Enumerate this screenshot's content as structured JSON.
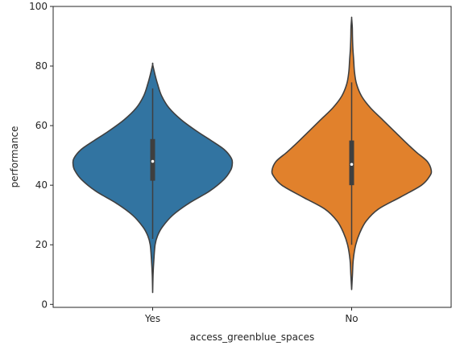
{
  "chart_data": {
    "type": "violin",
    "title": "",
    "xlabel": "access_greenblue_spaces",
    "ylabel": "performance",
    "ylim": [
      -1,
      100
    ],
    "yticks": [
      0,
      20,
      40,
      60,
      80,
      100
    ],
    "categories": [
      "Yes",
      "No"
    ],
    "grid": false,
    "legend": "none",
    "series": [
      {
        "category": "Yes",
        "color": "#3274a1",
        "min": 4,
        "max": 80.5,
        "whisker_low": 22,
        "whisker_high": 72.5,
        "q1": 41.5,
        "median": 48,
        "q3": 55.5,
        "density_half_width": [
          [
            4,
            0.0
          ],
          [
            10,
            0.5
          ],
          [
            15,
            1.5
          ],
          [
            20,
            3
          ],
          [
            23,
            6
          ],
          [
            26,
            12
          ],
          [
            30,
            25
          ],
          [
            34,
            45
          ],
          [
            38,
            70
          ],
          [
            42,
            88
          ],
          [
            45,
            96
          ],
          [
            47,
            98
          ],
          [
            49,
            97
          ],
          [
            52,
            88
          ],
          [
            55,
            72
          ],
          [
            58,
            55
          ],
          [
            62,
            35
          ],
          [
            66,
            20
          ],
          [
            70,
            11
          ],
          [
            74,
            6
          ],
          [
            77,
            3
          ],
          [
            80.5,
            0.0
          ]
        ]
      },
      {
        "category": "No",
        "color": "#e1812c",
        "min": 5,
        "max": 96,
        "whisker_low": 20,
        "whisker_high": 74.5,
        "q1": 40,
        "median": 47,
        "q3": 55,
        "density_half_width": [
          [
            5,
            0.0
          ],
          [
            10,
            1
          ],
          [
            15,
            2
          ],
          [
            20,
            5
          ],
          [
            24,
            10
          ],
          [
            28,
            18
          ],
          [
            32,
            33
          ],
          [
            36,
            60
          ],
          [
            40,
            86
          ],
          [
            43,
            96
          ],
          [
            45,
            98
          ],
          [
            48,
            93
          ],
          [
            51,
            80
          ],
          [
            54,
            68
          ],
          [
            58,
            53
          ],
          [
            62,
            38
          ],
          [
            66,
            23
          ],
          [
            70,
            12
          ],
          [
            74,
            6
          ],
          [
            78,
            3.5
          ],
          [
            82,
            2.5
          ],
          [
            86,
            1.5
          ],
          [
            90,
            1
          ],
          [
            93,
            0.8
          ],
          [
            96,
            0.0
          ]
        ]
      }
    ]
  }
}
